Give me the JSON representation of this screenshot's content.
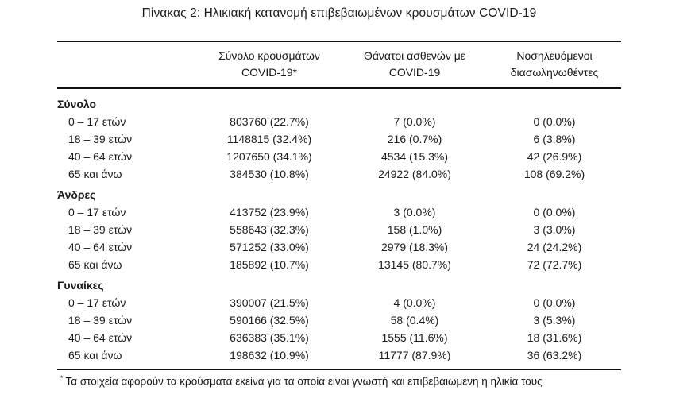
{
  "title": "Πίνακας 2: Ηλικιακή κατανομή επιβεβαιωμένων κρουσμάτων COVID-19",
  "colors": {
    "background": "#ffffff",
    "text": "#1a1a1a",
    "rule": "#111111"
  },
  "table": {
    "columns": [
      {
        "line1": "Σύνολο κρουσμάτων",
        "line2": "COVID-19*"
      },
      {
        "line1": "Θάνατοι ασθενών με",
        "line2": "COVID-19"
      },
      {
        "line1": "Νοσηλευόμενοι",
        "line2": "διασωληνωθέντες"
      }
    ],
    "sections": [
      {
        "label": "Σύνολο",
        "rows": [
          {
            "label": "0 – 17 ετών",
            "cases": "803760 (22.7%)",
            "deaths": "7 (0.0%)",
            "intubated": "0 (0.0%)"
          },
          {
            "label": "18 – 39 ετών",
            "cases": "1148815 (32.4%)",
            "deaths": "216 (0.7%)",
            "intubated": "6 (3.8%)"
          },
          {
            "label": "40 – 64 ετών",
            "cases": "1207650 (34.1%)",
            "deaths": "4534 (15.3%)",
            "intubated": "42 (26.9%)"
          },
          {
            "label": "65 και άνω",
            "cases": "384530 (10.8%)",
            "deaths": "24922 (84.0%)",
            "intubated": "108 (69.2%)"
          }
        ]
      },
      {
        "label": "Άνδρες",
        "rows": [
          {
            "label": "0 – 17 ετών",
            "cases": "413752 (23.9%)",
            "deaths": "3 (0.0%)",
            "intubated": "0 (0.0%)"
          },
          {
            "label": "18 – 39 ετών",
            "cases": "558643 (32.3%)",
            "deaths": "158 (1.0%)",
            "intubated": "3 (3.0%)"
          },
          {
            "label": "40 – 64 ετών",
            "cases": "571252 (33.0%)",
            "deaths": "2979 (18.3%)",
            "intubated": "24 (24.2%)"
          },
          {
            "label": "65 και άνω",
            "cases": "185892 (10.7%)",
            "deaths": "13145 (80.7%)",
            "intubated": "72 (72.7%)"
          }
        ]
      },
      {
        "label": "Γυναίκες",
        "rows": [
          {
            "label": "0 – 17 ετών",
            "cases": "390007 (21.5%)",
            "deaths": "4 (0.0%)",
            "intubated": "0 (0.0%)"
          },
          {
            "label": "18 – 39 ετών",
            "cases": "590166 (32.5%)",
            "deaths": "58 (0.4%)",
            "intubated": "3 (5.3%)"
          },
          {
            "label": "40 – 64 ετών",
            "cases": "636383 (35.1%)",
            "deaths": "1555 (11.6%)",
            "intubated": "18 (31.6%)"
          },
          {
            "label": "65 και άνω",
            "cases": "198632 (10.9%)",
            "deaths": "11777 (87.9%)",
            "intubated": "36 (63.2%)"
          }
        ]
      }
    ]
  },
  "footnote": {
    "marker": "*",
    "text": "Τα στοιχεία αφορούν τα κρούσματα εκείνα για τα οποία είναι γνωστή και επιβεβαιωμένη η ηλικία τους"
  }
}
